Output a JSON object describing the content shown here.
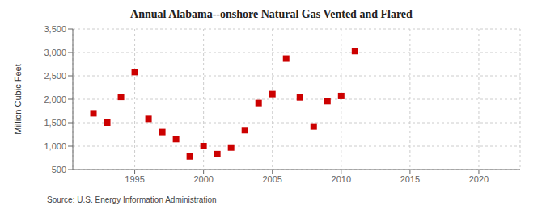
{
  "chart_data": {
    "type": "scatter",
    "title": "Annual Alabama--onshore Natural Gas Vented and Flared",
    "ylabel": "Million Cubic Feet",
    "source": "Source: U.S. Energy Information Administration",
    "x": [
      1992,
      1993,
      1994,
      1995,
      1996,
      1997,
      1998,
      1999,
      2000,
      2001,
      2002,
      2003,
      2004,
      2005,
      2006,
      2007,
      2008,
      2009,
      2010,
      2011
    ],
    "values": [
      1700,
      1500,
      2050,
      2580,
      1580,
      1300,
      1150,
      780,
      1000,
      830,
      970,
      1340,
      1920,
      2110,
      2870,
      2040,
      1420,
      1960,
      2070,
      3030
    ],
    "color": "#cc0000",
    "marker": "square",
    "xlim": [
      1990.5,
      2023
    ],
    "ylim": [
      500,
      3500
    ],
    "xticks": [
      1995,
      2000,
      2005,
      2010,
      2015,
      2020
    ],
    "yticks": [
      500,
      {
        "value": 1000,
        "label": "1,000"
      },
      {
        "value": 1500,
        "label": "1,500"
      },
      {
        "value": 2000,
        "label": "2,000"
      },
      {
        "value": 2500,
        "label": "2,500"
      },
      {
        "value": 3000,
        "label": "3,000"
      },
      {
        "value": 3500,
        "label": "3,500"
      }
    ],
    "grid": true
  }
}
